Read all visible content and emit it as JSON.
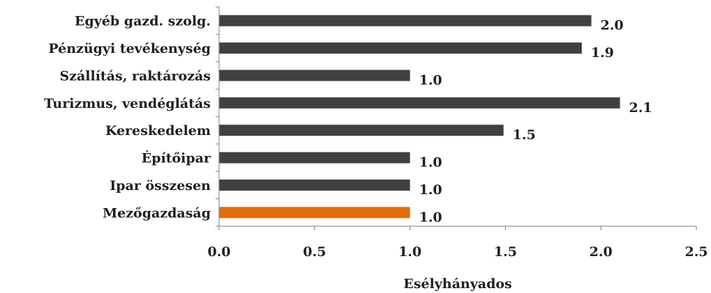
{
  "chart_data": {
    "type": "bar",
    "orientation": "horizontal",
    "categories": [
      "Egyéb gazd. szolg.",
      "Pénzügyi tevékenység",
      "Szállítás, raktározás",
      "Turizmus, vendéglátás",
      "Kereskedelem",
      "Építőipar",
      "Ipar összesen",
      "Mezőgazdaság"
    ],
    "values": [
      1.95,
      1.9,
      1.0,
      2.1,
      1.49,
      1.0,
      1.0,
      1.0
    ],
    "value_labels": [
      "2.0",
      "1.9",
      "1.0",
      "2.1",
      "1.5",
      "1.0",
      "1.0",
      "1.0"
    ],
    "bar_colors": [
      "#404040",
      "#404040",
      "#404040",
      "#404040",
      "#404040",
      "#404040",
      "#404040",
      "#E46C0A"
    ],
    "x_ticks": [
      "0.0",
      "0.5",
      "1.0",
      "1.5",
      "2.0",
      "2.5"
    ],
    "xlim": [
      0,
      2.5
    ],
    "xlabel": "Esélyhányados",
    "title": "",
    "grid": false,
    "legend": "none"
  }
}
